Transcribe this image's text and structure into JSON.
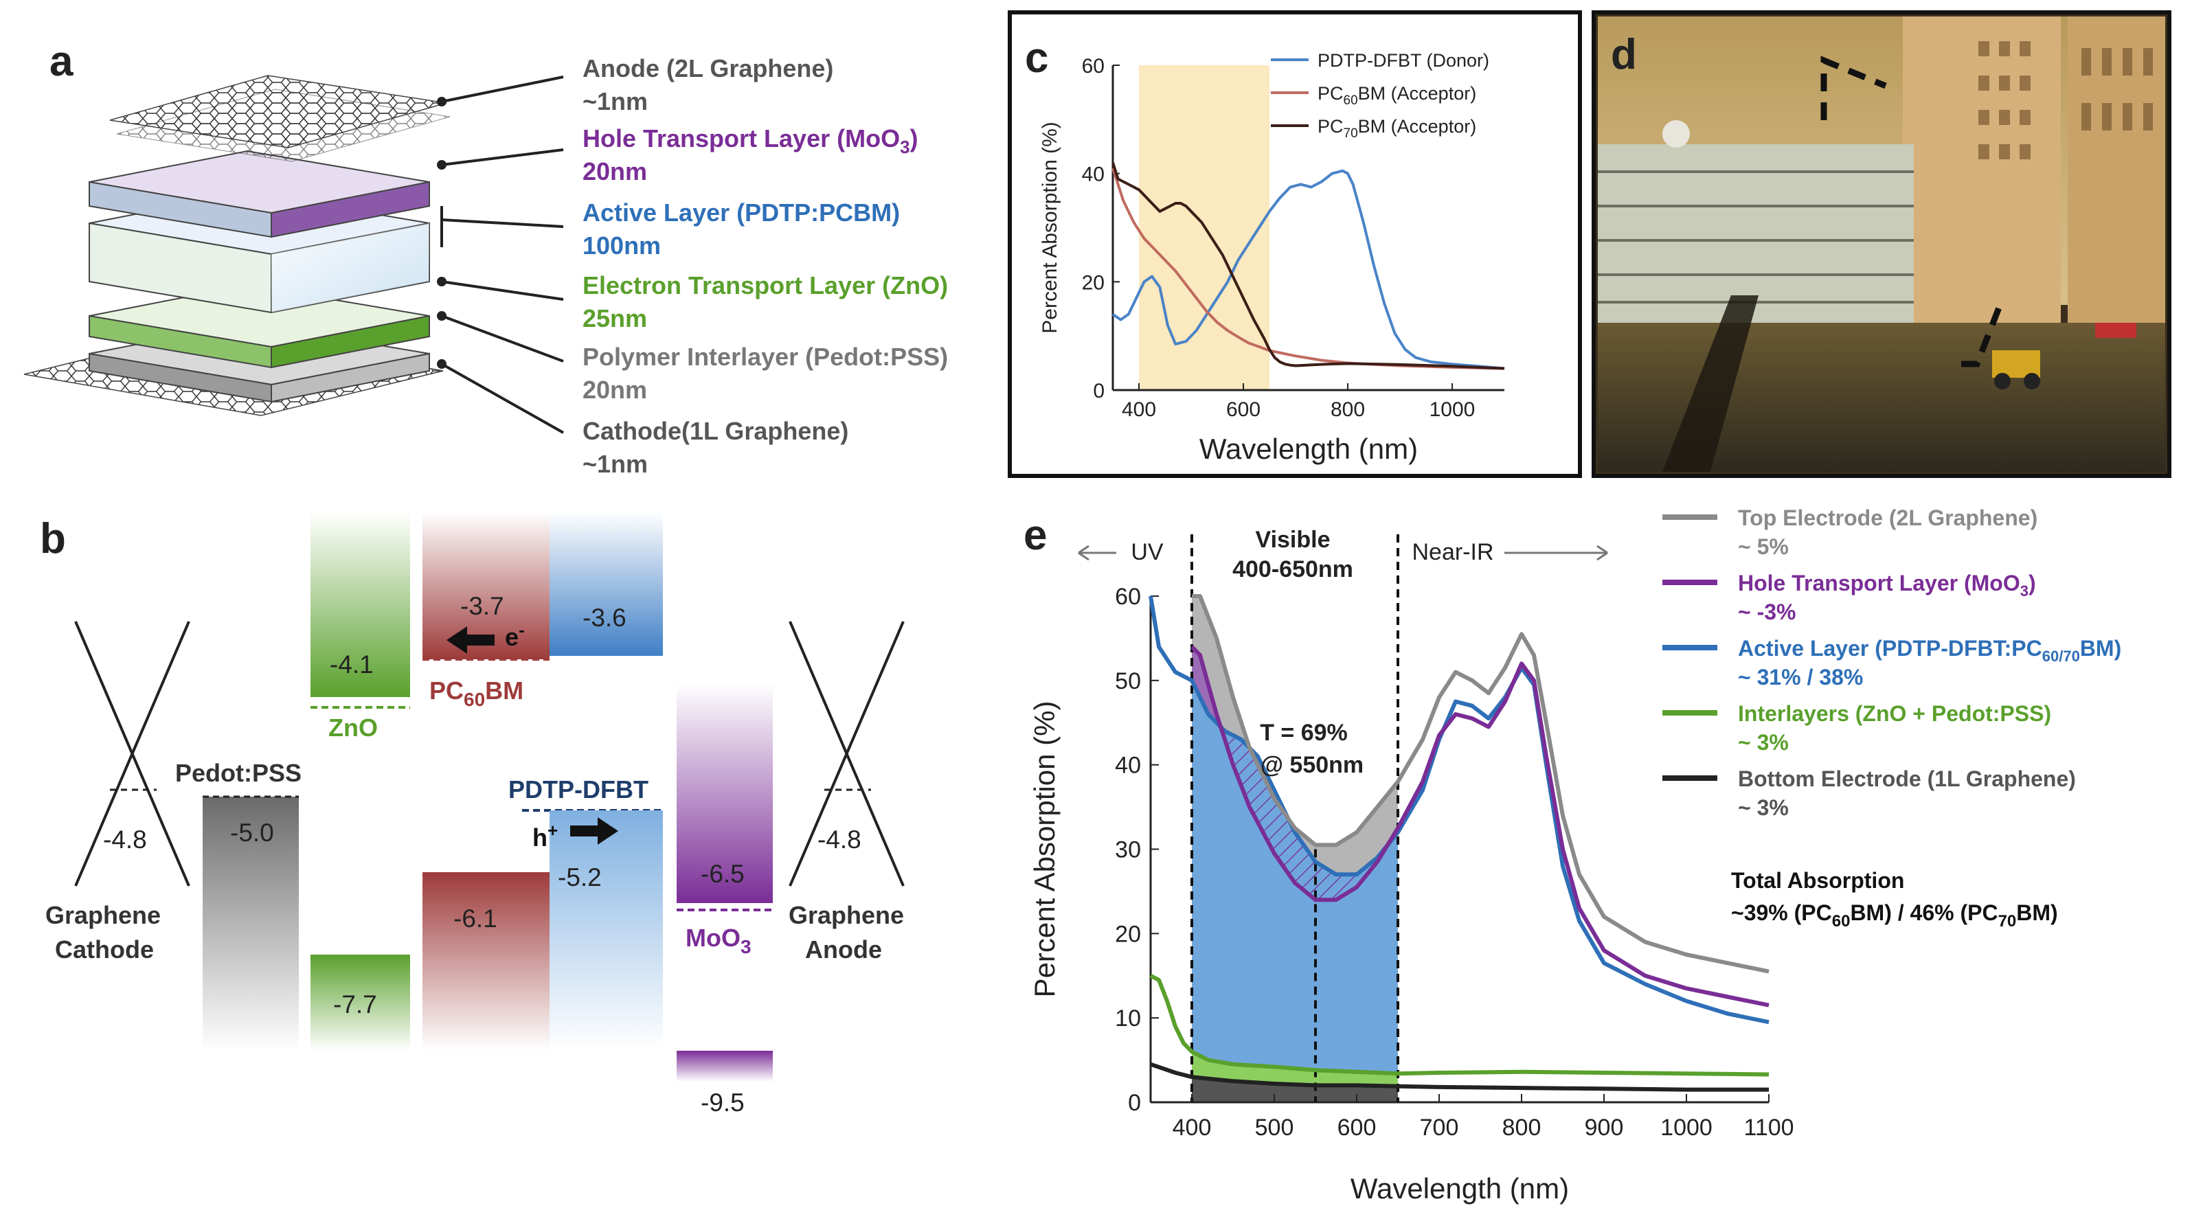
{
  "colors": {
    "gray": "#8a8a8a",
    "purple": "#7a2d96",
    "blue": "#2e6fb8",
    "green": "#5aa02c",
    "red": "#9e3b3b",
    "navy": "#1f3d6b"
  },
  "panel_a": {
    "letter": "a",
    "layers": [
      {
        "name": "Anode (2L Graphene)",
        "thickness": "~1nm",
        "color": "#555555"
      },
      {
        "name": "Hole Transport Layer (MoO",
        "sub": "3",
        "name_tail": ")",
        "thickness": "20nm",
        "color": "#7a2d96"
      },
      {
        "name": "Active Layer (PDTP:PCBM)",
        "thickness": "100nm",
        "color": "#2e6fb8"
      },
      {
        "name": "Electron Transport Layer (ZnO)",
        "thickness": "25nm",
        "color": "#5aa02c"
      },
      {
        "name": "Polymer Interlayer (Pedot:PSS)",
        "thickness": "20nm",
        "color": "#777777"
      },
      {
        "name": "Cathode(1L Graphene)",
        "thickness": "~1nm",
        "color": "#555555"
      }
    ]
  },
  "panel_b": {
    "letter": "b",
    "graphene_cathode": {
      "value": "-4.8",
      "label_line1": "Graphene",
      "label_line2": "Cathode"
    },
    "graphene_anode": {
      "value": "-4.8",
      "label_line1": "Graphene",
      "label_line2": "Anode"
    },
    "pedot": {
      "label": "Pedot:PSS",
      "value": "-5.0"
    },
    "zno": {
      "label": "ZnO",
      "lumo": "-4.1",
      "homo": "-7.7"
    },
    "pcbm": {
      "label_pre": "PC",
      "label_sub": "60",
      "label_post": "BM",
      "lumo": "-3.7",
      "homo": "-6.1",
      "carrier": "e",
      "carrier_sup": "-"
    },
    "pdtp": {
      "label": "PDTP-DFBT",
      "lumo": "-3.6",
      "homo": "-5.2",
      "carrier": "h",
      "carrier_sup": "+"
    },
    "moo3": {
      "label": "MoO",
      "label_sub": "3",
      "lumo": "-6.5",
      "homo": "-9.5"
    }
  },
  "chart_data": [
    {
      "panel": "c",
      "type": "line",
      "xlabel": "Wavelength (nm)",
      "ylabel": "Percent Absorption (%)",
      "xlim": [
        350,
        1100
      ],
      "ylim": [
        0,
        60
      ],
      "xticks": [
        400,
        600,
        800,
        1000
      ],
      "yticks": [
        0,
        20,
        40,
        60
      ],
      "shaded_region": [
        400,
        650
      ],
      "series": [
        {
          "name": "PDTP-DFBT (Donor)",
          "legend_pre": "PDTP-DFBT (Donor)",
          "color": "#4a84c8",
          "x": [
            350,
            365,
            380,
            395,
            410,
            425,
            440,
            455,
            470,
            490,
            510,
            530,
            550,
            570,
            590,
            610,
            630,
            650,
            670,
            690,
            710,
            730,
            750,
            770,
            790,
            800,
            810,
            830,
            850,
            870,
            890,
            910,
            930,
            960,
            1000,
            1050,
            1100
          ],
          "y": [
            14,
            13,
            14,
            17,
            20,
            21,
            19,
            12,
            8.5,
            9,
            11,
            14,
            17,
            20,
            24,
            27,
            30,
            33,
            35.5,
            37.5,
            38,
            37.5,
            38.5,
            40,
            40.5,
            40,
            38,
            31,
            23,
            16,
            10.5,
            7.5,
            6,
            5.2,
            4.8,
            4.4,
            4
          ]
        },
        {
          "name": "PC60BM (Acceptor)",
          "legend_pre": "PC",
          "legend_sub": "60",
          "legend_post": "BM (Acceptor)",
          "color": "#c06b60",
          "x": [
            350,
            370,
            390,
            410,
            430,
            450,
            470,
            490,
            510,
            530,
            550,
            570,
            590,
            610,
            630,
            650,
            680,
            700,
            750,
            800,
            900,
            1000,
            1100
          ],
          "y": [
            41,
            35,
            31,
            28,
            26,
            24,
            22,
            19.5,
            17,
            14.5,
            12.5,
            11,
            9.8,
            8.7,
            8,
            7.3,
            6.7,
            6.3,
            5.5,
            5,
            4.5,
            4.2,
            4
          ]
        },
        {
          "name": "PC70BM (Acceptor)",
          "legend_pre": "PC",
          "legend_sub": "70",
          "legend_post": "BM (Acceptor)",
          "color": "#3d1d17",
          "x": [
            350,
            360,
            380,
            400,
            420,
            440,
            460,
            470,
            480,
            490,
            500,
            520,
            540,
            560,
            580,
            600,
            620,
            640,
            650,
            660,
            670,
            680,
            690,
            700,
            720,
            760,
            800,
            900,
            1000,
            1100
          ],
          "y": [
            42,
            39,
            38,
            37,
            35,
            33,
            34,
            34.5,
            34.5,
            34,
            33,
            31,
            28,
            25,
            21,
            17,
            13,
            9.5,
            7.5,
            6,
            5.2,
            4.8,
            4.6,
            4.5,
            4.6,
            4.8,
            4.9,
            4.7,
            4.4,
            4
          ]
        }
      ]
    },
    {
      "panel": "e",
      "type": "area",
      "xlabel": "Wavelength (nm)",
      "ylabel": "Percent Absorption (%)",
      "xlim": [
        350,
        1100
      ],
      "ylim": [
        0,
        60
      ],
      "xticks": [
        400,
        500,
        600,
        700,
        800,
        900,
        1000,
        1100
      ],
      "yticks": [
        0,
        10,
        20,
        30,
        40,
        50,
        60
      ],
      "visible_range": [
        400,
        650
      ],
      "marker_x": 550,
      "annotation_line1": "T = 69%",
      "annotation_line2": "@ 550nm",
      "uv_label": "UV",
      "visible_label_line1": "Visible",
      "visible_label_line2": "400-650nm",
      "nir_label": "Near-IR",
      "series": [
        {
          "name": "Top Electrode (2L Graphene)",
          "pct": "~ 5%",
          "color": "#8a8a8a",
          "x": [
            400,
            410,
            430,
            450,
            470,
            500,
            525,
            550,
            575,
            600,
            625,
            650,
            680,
            700,
            720,
            740,
            760,
            780,
            800,
            815,
            830,
            850,
            870,
            900,
            950,
            1000,
            1050,
            1100
          ],
          "y": [
            60,
            60,
            55,
            48,
            42,
            36,
            32.5,
            30.5,
            30.5,
            32,
            35,
            38,
            43,
            48,
            51,
            50,
            48.5,
            51.5,
            55.5,
            53,
            45,
            34,
            27,
            22,
            19,
            17.5,
            16.5,
            15.5
          ]
        },
        {
          "name": "Hole Transport Layer (MoO3)",
          "legend_pre": "Hole Transport Layer (MoO",
          "legend_sub": "3",
          "legend_post": ")",
          "pct": "~ -3%",
          "color": "#7a2d96",
          "x": [
            400,
            410,
            430,
            450,
            470,
            500,
            525,
            550,
            575,
            600,
            625,
            650,
            680,
            700,
            720,
            740,
            760,
            780,
            800,
            815,
            830,
            850,
            870,
            900,
            950,
            1000,
            1050,
            1100
          ],
          "y": [
            54,
            53,
            46,
            40,
            35,
            29.5,
            26,
            24,
            24,
            25.5,
            28.5,
            32.5,
            38,
            43.5,
            46,
            45.5,
            44.5,
            47.5,
            52,
            50,
            41,
            30,
            23,
            18,
            15,
            13.5,
            12.5,
            11.5
          ]
        },
        {
          "name": "Active Layer (PDTP-DFBT:PC60/70BM)",
          "legend_pre": "Active Layer (PDTP-DFBT:PC",
          "legend_sub": "60/70",
          "legend_post": "BM)",
          "pct": "~ 31% /  38%",
          "color": "#2e6fb8",
          "x": [
            350,
            360,
            380,
            400,
            420,
            440,
            460,
            480,
            500,
            525,
            550,
            575,
            600,
            625,
            650,
            680,
            700,
            720,
            740,
            760,
            780,
            800,
            815,
            830,
            850,
            870,
            900,
            950,
            1000,
            1050,
            1100
          ],
          "y": [
            60,
            54,
            51,
            50,
            46,
            44,
            43,
            41,
            37,
            32,
            28.5,
            27,
            27,
            29,
            32,
            37,
            43,
            47.5,
            47,
            45.5,
            48,
            51.5,
            49.5,
            40,
            28,
            21.5,
            16.5,
            14,
            12,
            10.5,
            9.5
          ]
        },
        {
          "name": "Interlayers (ZnO + Pedot:PSS)",
          "pct": "~ 3%",
          "color": "#5aa02c",
          "x": [
            350,
            360,
            370,
            380,
            390,
            400,
            420,
            450,
            500,
            550,
            600,
            650,
            700,
            800,
            900,
            1000,
            1100
          ],
          "y": [
            15,
            14.5,
            12,
            9,
            7,
            6,
            5,
            4.5,
            4.2,
            3.8,
            3.6,
            3.4,
            3.5,
            3.6,
            3.5,
            3.4,
            3.3
          ]
        },
        {
          "name": "Bottom Electrode (1L Graphene)",
          "pct": "~ 3%",
          "color": "#222222",
          "x": [
            350,
            380,
            400,
            450,
            500,
            550,
            600,
            650,
            700,
            800,
            900,
            1000,
            1100
          ],
          "y": [
            4.5,
            3.5,
            3,
            2.5,
            2.2,
            2,
            2,
            1.9,
            1.8,
            1.7,
            1.6,
            1.5,
            1.5
          ]
        }
      ],
      "total_label": "Total Absorption",
      "total_value_pre": "~39% (PC",
      "total_value_sub1": "60",
      "total_value_mid": "BM) / 46% (PC",
      "total_value_sub2": "70",
      "total_value_post": "BM)"
    }
  ],
  "panel_c": {
    "letter": "c"
  },
  "panel_d": {
    "letter": "d"
  },
  "panel_e": {
    "letter": "e"
  }
}
